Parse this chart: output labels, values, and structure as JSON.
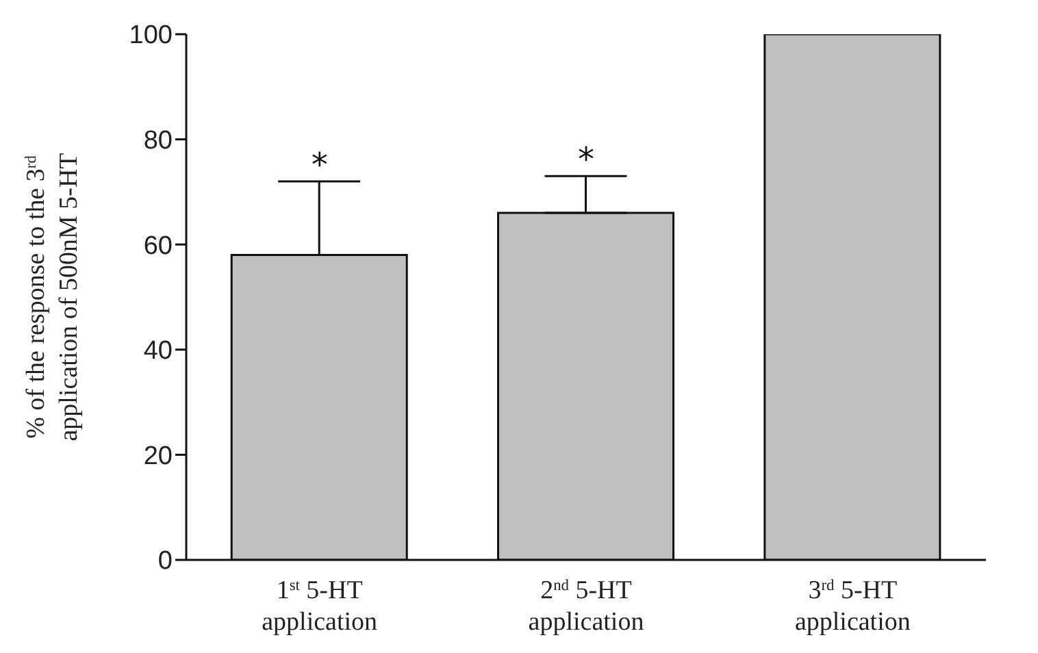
{
  "chart_data": {
    "type": "bar",
    "ylabel": "% of the response to the 3$^{rd}$ application of 500nM 5-HT",
    "categories": [
      "1$^{st}$ 5-HT application",
      "2$^{nd}$ 5-HT application",
      "3$^{rd}$ 5-HT application"
    ],
    "values": [
      58,
      66,
      100
    ],
    "color": "#c0c0c0",
    "errors": [
      [
        58,
        72
      ],
      [
        66,
        73
      ],
      null
    ],
    "ylim": [
      0,
      100
    ],
    "yticks": [
      0,
      20,
      40,
      60,
      80,
      100
    ],
    "grid": false,
    "legend": false,
    "annotations": [
      "*",
      "*"
    ]
  }
}
